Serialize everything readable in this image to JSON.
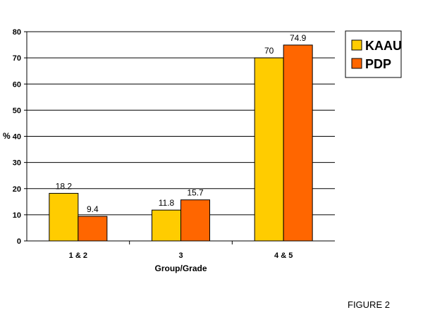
{
  "chart_data": {
    "type": "bar",
    "categories": [
      "1 & 2",
      "3",
      "4 & 5"
    ],
    "series": [
      {
        "name": "KAAU",
        "values": [
          18.2,
          11.8,
          70
        ],
        "color": "#FFCC00"
      },
      {
        "name": "PDP",
        "values": [
          9.4,
          15.7,
          74.9
        ],
        "color": "#FF6600"
      }
    ],
    "data_labels": [
      [
        "18.2",
        "11.8",
        "70"
      ],
      [
        "9.4",
        "15.7",
        "74.9"
      ]
    ],
    "xlabel": "Group/Grade",
    "ylabel": "%",
    "ylim": [
      0,
      80
    ],
    "yticks": [
      "0",
      "10",
      "20",
      "30",
      "40",
      "50",
      "60",
      "70",
      "80"
    ],
    "grid": true,
    "legend_position": "top-right"
  },
  "caption": "FIGURE 2"
}
